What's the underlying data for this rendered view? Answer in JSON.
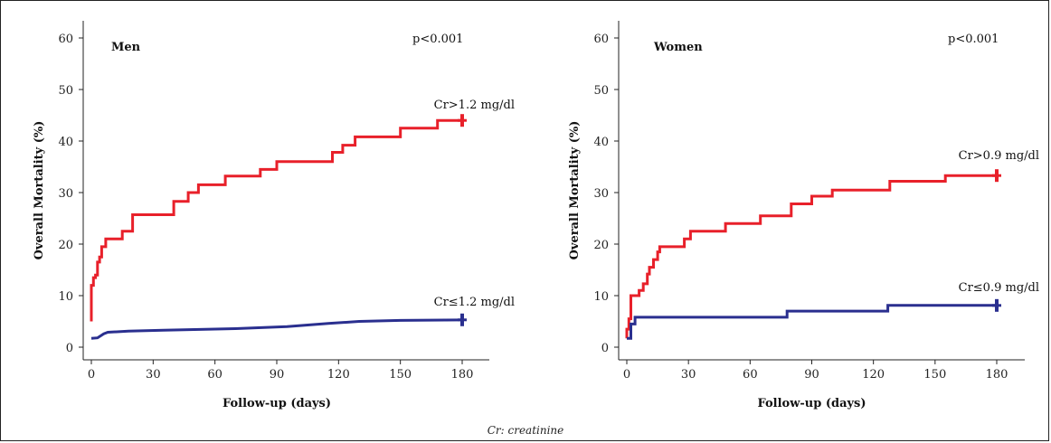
{
  "footnote": "Cr: creatinine",
  "chart_data": [
    {
      "type": "line",
      "group": "Men",
      "p_value": "p<0.001",
      "xlabel": "Follow-up (days)",
      "ylabel": "Overall Mortality (%)",
      "xlim": [
        0,
        180
      ],
      "ylim": [
        0,
        60
      ],
      "xticks": [
        0,
        30,
        60,
        90,
        120,
        150,
        180
      ],
      "yticks": [
        0,
        10,
        20,
        30,
        40,
        50,
        60
      ],
      "grid": false,
      "series": [
        {
          "name": "Cr>1.2 mg/dl",
          "color": "#e8202a",
          "step": true,
          "points": [
            [
              0,
              5
            ],
            [
              0,
              12
            ],
            [
              1,
              12
            ],
            [
              1,
              13.5
            ],
            [
              2,
              13.5
            ],
            [
              2,
              14
            ],
            [
              3,
              14
            ],
            [
              3,
              16.5
            ],
            [
              4,
              16.5
            ],
            [
              4,
              17.5
            ],
            [
              5,
              17.5
            ],
            [
              5,
              19.5
            ],
            [
              7,
              19.5
            ],
            [
              7,
              21
            ],
            [
              15,
              21
            ],
            [
              15,
              22.5
            ],
            [
              20,
              22.5
            ],
            [
              20,
              25.7
            ],
            [
              40,
              25.7
            ],
            [
              40,
              28.3
            ],
            [
              47,
              28.3
            ],
            [
              47,
              30
            ],
            [
              52,
              30
            ],
            [
              52,
              31.5
            ],
            [
              65,
              31.5
            ],
            [
              65,
              33.2
            ],
            [
              82,
              33.2
            ],
            [
              82,
              34.5
            ],
            [
              90,
              34.5
            ],
            [
              90,
              36
            ],
            [
              117,
              36
            ],
            [
              117,
              37.8
            ],
            [
              122,
              37.8
            ],
            [
              122,
              39.2
            ],
            [
              128,
              39.2
            ],
            [
              128,
              40.8
            ],
            [
              150,
              40.8
            ],
            [
              150,
              42.5
            ],
            [
              168,
              42.5
            ],
            [
              168,
              44
            ],
            [
              180,
              44
            ]
          ]
        },
        {
          "name": "Cr≤1.2 mg/dl",
          "color": "#2a2f8f",
          "step": true,
          "points": [
            [
              0,
              1.7
            ],
            [
              3,
              1.8
            ],
            [
              6,
              2.6
            ],
            [
              8,
              2.9
            ],
            [
              18,
              3.1
            ],
            [
              35,
              3.3
            ],
            [
              70,
              3.6
            ],
            [
              95,
              4.0
            ],
            [
              105,
              4.3
            ],
            [
              115,
              4.6
            ],
            [
              130,
              5.0
            ],
            [
              150,
              5.2
            ],
            [
              180,
              5.3
            ]
          ]
        }
      ]
    },
    {
      "type": "line",
      "group": "Women",
      "p_value": "p<0.001",
      "xlabel": "Follow-up (days)",
      "ylabel": "Overall Mortality (%)",
      "xlim": [
        0,
        180
      ],
      "ylim": [
        0,
        60
      ],
      "xticks": [
        0,
        30,
        60,
        90,
        120,
        150,
        180
      ],
      "yticks": [
        0,
        10,
        20,
        30,
        40,
        50,
        60
      ],
      "grid": false,
      "series": [
        {
          "name": "Cr>0.9 mg/dl",
          "color": "#e8202a",
          "step": true,
          "points": [
            [
              0,
              1.7
            ],
            [
              0,
              3.5
            ],
            [
              1,
              3.5
            ],
            [
              1,
              5.5
            ],
            [
              2,
              5.5
            ],
            [
              2,
              10
            ],
            [
              6,
              10
            ],
            [
              6,
              11
            ],
            [
              8,
              11
            ],
            [
              8,
              12.3
            ],
            [
              10,
              12.3
            ],
            [
              10,
              14.2
            ],
            [
              11,
              14.2
            ],
            [
              11,
              15.5
            ],
            [
              13,
              15.5
            ],
            [
              13,
              17
            ],
            [
              15,
              17
            ],
            [
              15,
              18.5
            ],
            [
              16,
              18.5
            ],
            [
              16,
              19.5
            ],
            [
              28,
              19.5
            ],
            [
              28,
              21
            ],
            [
              31,
              21
            ],
            [
              31,
              22.5
            ],
            [
              48,
              22.5
            ],
            [
              48,
              24
            ],
            [
              65,
              24
            ],
            [
              65,
              25.5
            ],
            [
              80,
              25.5
            ],
            [
              80,
              27.8
            ],
            [
              90,
              27.8
            ],
            [
              90,
              29.3
            ],
            [
              100,
              29.3
            ],
            [
              100,
              30.5
            ],
            [
              128,
              30.5
            ],
            [
              128,
              32.2
            ],
            [
              155,
              32.2
            ],
            [
              155,
              33.3
            ],
            [
              180,
              33.3
            ]
          ]
        },
        {
          "name": "Cr≤0.9 mg/dl",
          "color": "#2a2f8f",
          "step": true,
          "points": [
            [
              0,
              1.7
            ],
            [
              2,
              1.7
            ],
            [
              2,
              4.5
            ],
            [
              4,
              4.5
            ],
            [
              4,
              5.8
            ],
            [
              78,
              5.8
            ],
            [
              78,
              7.0
            ],
            [
              127,
              7.0
            ],
            [
              127,
              8.1
            ],
            [
              180,
              8.1
            ]
          ]
        }
      ]
    }
  ]
}
